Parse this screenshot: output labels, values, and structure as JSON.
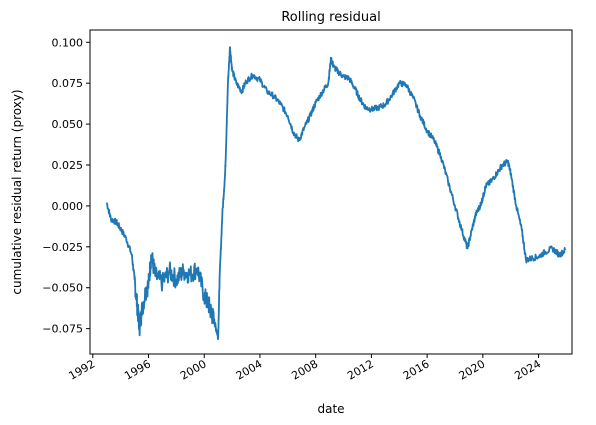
{
  "chart_data": {
    "type": "line",
    "title": "Rolling residual",
    "xlabel": "date",
    "ylabel": "cumulative residual return (proxy)",
    "x_tick_labels": [
      "1992",
      "1996",
      "2000",
      "2004",
      "2008",
      "2012",
      "2016",
      "2020",
      "2024"
    ],
    "y_tick_labels": [
      "−0.075",
      "−0.050",
      "−0.025",
      "0.000",
      "0.025",
      "0.050",
      "0.075",
      "0.100"
    ],
    "xlim": [
      1991.8,
      2026.4
    ],
    "ylim": [
      -0.0905,
      0.1075
    ],
    "grid": false,
    "legend": "none",
    "line_color": "#1f77b4",
    "series": [
      {
        "x": [
          1993.0,
          1993.3,
          1993.7,
          1994.0,
          1994.4,
          1994.8,
          1995.0,
          1995.2,
          1995.35,
          1995.5,
          1995.8,
          1996.0,
          1996.2,
          1996.5,
          1997.0,
          1997.5,
          1998.0,
          1998.5,
          1999.0,
          1999.5,
          2000.0,
          2000.3,
          2000.5,
          2000.7,
          2000.85,
          2001.0,
          2001.1,
          2001.3,
          2001.5,
          2001.6,
          2001.7,
          2001.85,
          2002.0,
          2002.3,
          2002.7,
          2003.0,
          2003.5,
          2004.0,
          2004.5,
          2005.0,
          2005.5,
          2006.0,
          2006.4,
          2006.8,
          2007.2,
          2007.6,
          2008.0,
          2008.5,
          2008.9,
          2009.1,
          2009.3,
          2009.6,
          2010.0,
          2010.4,
          2010.8,
          2011.2,
          2011.6,
          2012.0,
          2012.5,
          2013.0,
          2013.5,
          2014.0,
          2014.5,
          2015.0,
          2015.5,
          2016.0,
          2016.5,
          2017.0,
          2017.5,
          2018.0,
          2018.5,
          2018.9,
          2019.2,
          2019.5,
          2019.8,
          2020.0,
          2020.2,
          2020.6,
          2021.0,
          2021.4,
          2021.8,
          2022.0,
          2022.4,
          2022.8,
          2023.1,
          2023.5,
          2024.0,
          2024.5,
          2025.0,
          2025.5,
          2025.9
        ],
        "y": [
          0.002,
          -0.008,
          -0.01,
          -0.014,
          -0.02,
          -0.03,
          -0.045,
          -0.062,
          -0.074,
          -0.065,
          -0.052,
          -0.048,
          -0.03,
          -0.043,
          -0.047,
          -0.04,
          -0.045,
          -0.04,
          -0.042,
          -0.038,
          -0.055,
          -0.06,
          -0.065,
          -0.07,
          -0.075,
          -0.08,
          -0.045,
          -0.005,
          0.02,
          0.045,
          0.075,
          0.097,
          0.083,
          0.075,
          0.07,
          0.076,
          0.08,
          0.077,
          0.07,
          0.067,
          0.062,
          0.055,
          0.045,
          0.04,
          0.048,
          0.055,
          0.063,
          0.07,
          0.075,
          0.09,
          0.085,
          0.082,
          0.079,
          0.078,
          0.072,
          0.065,
          0.06,
          0.059,
          0.06,
          0.062,
          0.068,
          0.075,
          0.074,
          0.066,
          0.055,
          0.046,
          0.04,
          0.03,
          0.015,
          0.0,
          -0.015,
          -0.026,
          -0.015,
          -0.005,
          0.0,
          0.005,
          0.012,
          0.015,
          0.02,
          0.025,
          0.027,
          0.02,
          0.0,
          -0.015,
          -0.033,
          -0.032,
          -0.031,
          -0.028,
          -0.026,
          -0.03,
          -0.027
        ]
      }
    ]
  }
}
